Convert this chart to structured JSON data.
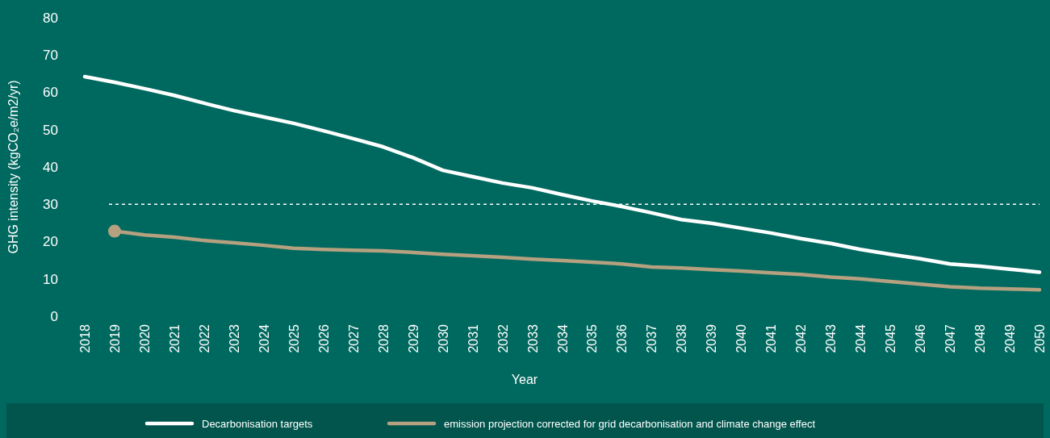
{
  "chart_data": {
    "type": "line",
    "xlabel": "Year",
    "ylabel": "GHG intensity (kgCO₂e/m2/yr)",
    "categories": [
      "2018",
      "2019",
      "2020",
      "2021",
      "2022",
      "2023",
      "2024",
      "2025",
      "2026",
      "2027",
      "2028",
      "2029",
      "2030",
      "2031",
      "2032",
      "2033",
      "2034",
      "2035",
      "2036",
      "2037",
      "2038",
      "2039",
      "2040",
      "2041",
      "2042",
      "2043",
      "2044",
      "2045",
      "2046",
      "2047",
      "2048",
      "2049",
      "2050"
    ],
    "ylim": [
      0,
      80
    ],
    "yticks": [
      0,
      10,
      20,
      30,
      40,
      50,
      60,
      70,
      80
    ],
    "grid": false,
    "legend": "bottom",
    "line_style": "solid",
    "series": [
      {
        "name": "Decarbonisation targets",
        "color": "#ffffff",
        "values": [
          64.2,
          62.7,
          61,
          59.2,
          57.1,
          55.1,
          53.4,
          51.7,
          49.7,
          47.6,
          45.4,
          42.5,
          39.1,
          37.4,
          35.7,
          34.4,
          32.6,
          30.9,
          29.4,
          27.7,
          25.9,
          24.9,
          23.6,
          22.3,
          20.8,
          19.5,
          17.9,
          16.6,
          15.4,
          14,
          13.4,
          12.6,
          11.8
        ]
      },
      {
        "name": "emission projection corrected for grid decarbonisation and climate change effect",
        "color": "#b5a07f",
        "values": [
          null,
          22.8,
          21.8,
          21.2,
          20.3,
          19.7,
          19,
          18.2,
          17.9,
          17.7,
          17.5,
          17.1,
          16.6,
          16.2,
          15.8,
          15.3,
          14.9,
          14.5,
          14,
          13.2,
          12.9,
          12.5,
          12.1,
          11.6,
          11.2,
          10.5,
          10,
          9.3,
          8.6,
          7.9,
          7.5,
          7.3,
          7.1
        ]
      },
      {
        "type": "scatter",
        "color": "#b5a07f",
        "marker": "circle",
        "values": [
          null,
          22.8,
          null,
          null,
          null,
          null,
          null,
          null,
          null,
          null,
          null,
          null,
          null,
          null,
          null,
          null,
          null,
          null,
          null,
          null,
          null,
          null,
          null,
          null,
          null,
          null,
          null,
          null,
          null,
          null,
          null,
          null,
          null
        ]
      }
    ],
    "ref_lines": [
      {
        "axis": "y",
        "value": 30,
        "color": "#ffffff",
        "line_style": "dashed"
      }
    ]
  }
}
